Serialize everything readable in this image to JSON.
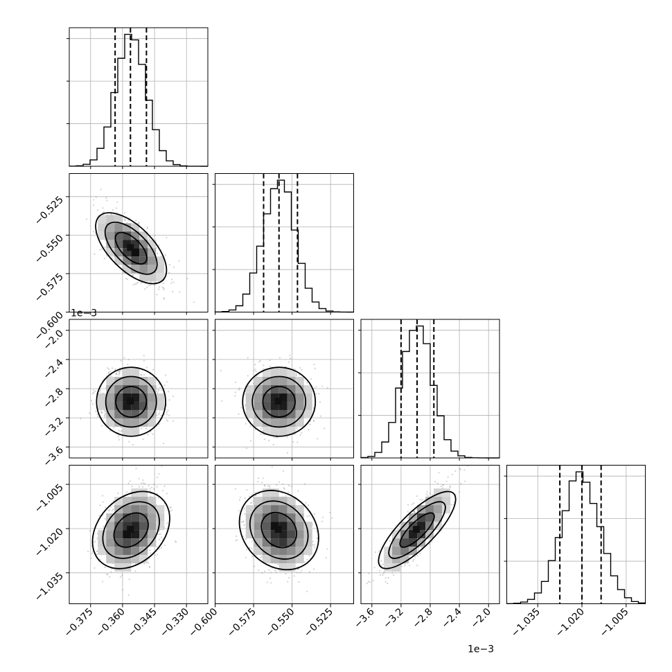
{
  "figure": {
    "width": 970,
    "height": 970
  },
  "chart_data": {
    "type": "corner",
    "params": [
      {
        "key": "p0",
        "mean": -0.356,
        "std": 0.0072,
        "range": [
          -0.385,
          -0.32
        ],
        "ticks": [
          -0.375,
          -0.36,
          -0.345,
          -0.33
        ],
        "tick_labels": [
          "−0.375",
          "−0.360",
          "−0.345",
          "−0.330"
        ],
        "quantiles": [
          -0.3635,
          -0.3563,
          -0.3488
        ],
        "offset_label": ""
      },
      {
        "key": "p1",
        "mean": -0.5585,
        "std": 0.0105,
        "range": [
          -0.6,
          -0.51
        ],
        "ticks": [
          -0.6,
          -0.575,
          -0.55,
          -0.525
        ],
        "tick_labels": [
          "−0.600",
          "−0.575",
          "−0.550",
          "−0.525"
        ],
        "quantiles": [
          -0.5685,
          -0.5585,
          -0.5465
        ],
        "offset_label": "1e−3"
      },
      {
        "key": "p2",
        "mean": -2.98,
        "std": 0.21,
        "range": [
          -3.75,
          -1.85
        ],
        "ticks": [
          -3.6,
          -3.2,
          -2.8,
          -2.4,
          -2.0
        ],
        "tick_labels": [
          "−3.6",
          "−3.2",
          "−2.8",
          "−2.4",
          "−2.0"
        ],
        "quantiles": [
          -3.2,
          -2.98,
          -2.75
        ],
        "offset_label": "1e−3"
      },
      {
        "key": "p3",
        "mean": -1.0205,
        "std": 0.0065,
        "range": [
          -1.0455,
          -0.9985
        ],
        "ticks": [
          -1.035,
          -1.02,
          -1.005
        ],
        "tick_labels": [
          "−1.035",
          "−1.020",
          "−1.005"
        ],
        "quantiles": [
          -1.0275,
          -1.02,
          -1.0135
        ],
        "offset_label": ""
      }
    ],
    "correlations": {
      "1,0": -0.62,
      "2,0": 0.0,
      "2,1": 0.0,
      "3,0": 0.3,
      "3,1": -0.2,
      "3,2": 0.8
    },
    "histogram_bins": 20,
    "contour_levels": 3,
    "samples_per_panel": 900,
    "grid": true,
    "quantile_line_style": "dashed",
    "colors": {
      "line": "#000000",
      "points": "#9a9a9a",
      "grid": "#b0b0b0"
    }
  }
}
